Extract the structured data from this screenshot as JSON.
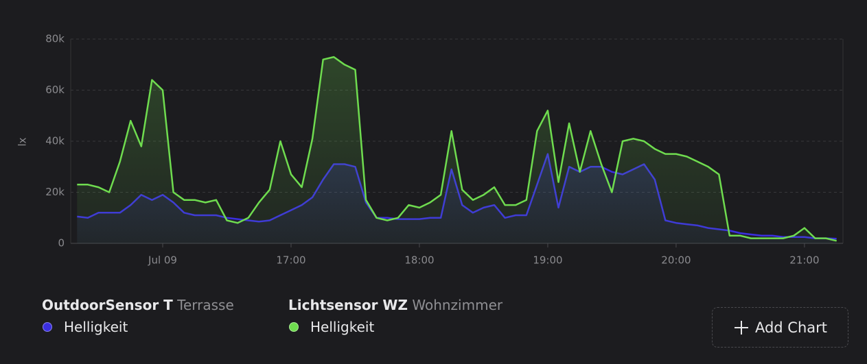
{
  "chart_data": {
    "type": "line",
    "y_label": "lx",
    "x": [
      "15:20",
      "15:25",
      "15:30",
      "15:35",
      "15:40",
      "15:45",
      "15:50",
      "15:55",
      "16:00",
      "16:05",
      "16:10",
      "16:15",
      "16:20",
      "16:25",
      "16:30",
      "16:35",
      "16:40",
      "16:45",
      "16:50",
      "16:55",
      "17:00",
      "17:05",
      "17:10",
      "17:15",
      "17:20",
      "17:25",
      "17:30",
      "17:35",
      "17:40",
      "17:45",
      "17:50",
      "17:55",
      "18:00",
      "18:05",
      "18:10",
      "18:15",
      "18:20",
      "18:25",
      "18:30",
      "18:35",
      "18:40",
      "18:45",
      "18:50",
      "18:55",
      "19:00",
      "19:05",
      "19:10",
      "19:15",
      "19:20",
      "19:25",
      "19:30",
      "19:35",
      "19:40",
      "19:45",
      "19:50",
      "19:55",
      "20:00",
      "20:05",
      "20:10",
      "20:15",
      "20:20",
      "20:25",
      "20:30",
      "20:35",
      "20:40",
      "20:45",
      "20:50",
      "20:55",
      "21:00",
      "21:05",
      "21:10",
      "21:15"
    ],
    "xlim": [
      "15:17",
      "21:18"
    ],
    "xticks": [
      {
        "value": "16:00",
        "label": "Jul 09"
      },
      "17:00",
      "18:00",
      "19:00",
      "20:00",
      "21:00"
    ],
    "ylim": [
      0,
      80000
    ],
    "yticks": [
      0,
      {
        "value": 20000,
        "label": "20k"
      },
      {
        "value": 40000,
        "label": "40k"
      },
      {
        "value": 60000,
        "label": "60k"
      },
      {
        "value": 80000,
        "label": "80k"
      }
    ],
    "grid": true,
    "series": [
      {
        "device": "OutdoorSensor T",
        "area": "Terrasse",
        "name": "Helligkeit",
        "color": "#3b2fe0",
        "values": [
          10500,
          10000,
          12000,
          12000,
          12000,
          15000,
          19000,
          17000,
          19000,
          16000,
          12000,
          11000,
          11000,
          11000,
          10000,
          9500,
          9000,
          8500,
          9000,
          11000,
          13000,
          15000,
          18000,
          25000,
          31000,
          31000,
          30000,
          16000,
          10000,
          10000,
          9500,
          9500,
          9500,
          10000,
          10000,
          29000,
          15000,
          12000,
          14000,
          15000,
          10000,
          11000,
          11000,
          23000,
          35000,
          14000,
          30000,
          28000,
          30000,
          30000,
          28000,
          27000,
          29000,
          31000,
          25000,
          9000,
          8000,
          7500,
          7000,
          6000,
          5500,
          5000,
          4000,
          3500,
          3000,
          3000,
          2500,
          2500,
          2500,
          2000,
          2000,
          1800
        ]
      },
      {
        "device": "Lichtsensor WZ",
        "area": "Wohnzimmer",
        "name": "Helligkeit",
        "color": "#6fdc4f",
        "values": [
          23000,
          23000,
          22000,
          20000,
          32000,
          48000,
          38000,
          64000,
          60000,
          20000,
          17000,
          17000,
          16000,
          17000,
          9000,
          8000,
          10000,
          16000,
          21000,
          40000,
          27000,
          22000,
          41000,
          72000,
          73000,
          70000,
          68000,
          17000,
          10000,
          9000,
          10000,
          15000,
          14000,
          16000,
          19000,
          44000,
          21000,
          17000,
          19000,
          22000,
          15000,
          15000,
          17000,
          44000,
          52000,
          24000,
          47000,
          28000,
          44000,
          31000,
          20000,
          40000,
          41000,
          40000,
          37000,
          35000,
          35000,
          34000,
          32000,
          30000,
          27000,
          3000,
          3000,
          2000,
          2000,
          2000,
          2000,
          3000,
          6000,
          2000,
          2000,
          1000
        ]
      }
    ],
    "button": "Add Chart"
  }
}
